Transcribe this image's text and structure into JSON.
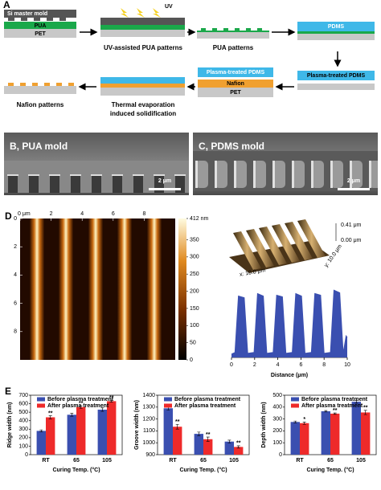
{
  "panel_a": {
    "label": "A",
    "mold": "Si master mold",
    "pua": "PUA",
    "pet": "PET",
    "uv": "UV",
    "step2": "UV-assisted PUA patterns",
    "step3": "PUA patterns",
    "pdms": "PDMS",
    "plasma_pdms_1": "Plasma-treated PDMS",
    "plasma_pdms_2": "Plasma-treated PDMS",
    "nafion": "Nafion",
    "pet_2": "PET",
    "step7_line1": "Thermal evaporation",
    "step7_line2": "induced solidification",
    "step8": "Nafion patterns"
  },
  "panel_b": {
    "label": "B, PUA mold",
    "scale": "2 μm"
  },
  "panel_c": {
    "label": "C, PDMS mold",
    "scale": "2 μm"
  },
  "panel_d": {
    "label": "D",
    "map": {
      "xlim": [
        0,
        10
      ],
      "ylim": [
        0,
        10
      ],
      "xticks": [
        {
          "value": 0,
          "label": "0 μm"
        },
        2,
        4,
        6,
        8
      ],
      "yticks": [
        0,
        2,
        4,
        6,
        8
      ],
      "clim": [
        0,
        412
      ],
      "cticks": [
        {
          "value": 412,
          "label": "412 nm"
        },
        350,
        300,
        250,
        200,
        150,
        100,
        50,
        0
      ]
    },
    "surface": {
      "z_max": "0.41 μm",
      "z_min": "0.00 μm",
      "x_range": "x: 10.0 μm",
      "y_range": "y: 10.0 μm"
    }
  },
  "panel_e": {
    "label": "E"
  },
  "chart_data": [
    {
      "type": "area",
      "x_label": "Distance (μm)",
      "color": "#3a4fb0",
      "x": [
        0,
        0.3,
        0.6,
        1.1,
        1.4,
        1.95,
        2.25,
        2.75,
        3.05,
        3.6,
        3.9,
        4.4,
        4.7,
        5.25,
        5.55,
        6.05,
        6.35,
        6.9,
        7.2,
        7.7,
        8.0,
        8.55,
        8.85,
        9.35,
        9.65,
        9.9,
        10
      ],
      "values": [
        20,
        30,
        370,
        360,
        25,
        30,
        385,
        370,
        25,
        30,
        375,
        365,
        25,
        30,
        385,
        370,
        25,
        30,
        385,
        375,
        25,
        30,
        405,
        390,
        25,
        130,
        120
      ],
      "xlim": [
        0,
        10
      ],
      "xticks": [
        0,
        2,
        4,
        6,
        8,
        10
      ],
      "ylim": [
        0,
        450
      ]
    },
    {
      "type": "bar",
      "y_label": "Ridge width (nm)",
      "x_label": "Curing Temp. (°C)",
      "categories": [
        "RT",
        "65",
        "105"
      ],
      "series": [
        {
          "name": "Before plasma treatment",
          "color": "#3a4fb0",
          "values": [
            280,
            470,
            530
          ],
          "errors": [
            12,
            18,
            20
          ]
        },
        {
          "name": "After plasma treatment",
          "color": "#ee2a2a",
          "values": [
            440,
            560,
            630
          ],
          "errors": [
            18,
            15,
            12
          ],
          "annotations": [
            "**",
            "**",
            "**"
          ]
        }
      ],
      "ylim": [
        0,
        700
      ],
      "yticks": [
        0,
        100,
        200,
        300,
        400,
        500,
        600,
        700
      ]
    },
    {
      "type": "bar",
      "y_label": "Groove width (nm)",
      "x_label": "Curing Temp. (°C)",
      "categories": [
        "RT",
        "65",
        "105"
      ],
      "series": [
        {
          "name": "Before plasma treatment",
          "color": "#3a4fb0",
          "values": [
            1290,
            1075,
            1010
          ],
          "errors": [
            15,
            15,
            12
          ]
        },
        {
          "name": "After plasma treatment",
          "color": "#ee2a2a",
          "values": [
            1135,
            1030,
            965
          ],
          "errors": [
            20,
            18,
            10
          ],
          "annotations": [
            "**",
            "**",
            "**"
          ]
        }
      ],
      "ylim": [
        900,
        1400
      ],
      "yticks": [
        900,
        1000,
        1100,
        1200,
        1300,
        1400
      ]
    },
    {
      "type": "bar",
      "y_label": "Depth width (nm)",
      "x_label": "Curing Temp. (°C)",
      "categories": [
        "RT",
        "65",
        "105"
      ],
      "series": [
        {
          "name": "Before plasma treatment",
          "color": "#3a4fb0",
          "values": [
            275,
            365,
            445
          ],
          "errors": [
            8,
            6,
            12
          ]
        },
        {
          "name": "After plasma treatment",
          "color": "#ee2a2a",
          "values": [
            265,
            345,
            355
          ],
          "errors": [
            10,
            6,
            18
          ],
          "annotations": [
            "*",
            "**",
            "**"
          ]
        }
      ],
      "ylim": [
        0,
        500
      ],
      "yticks": [
        0,
        100,
        200,
        300,
        400,
        500
      ]
    }
  ]
}
